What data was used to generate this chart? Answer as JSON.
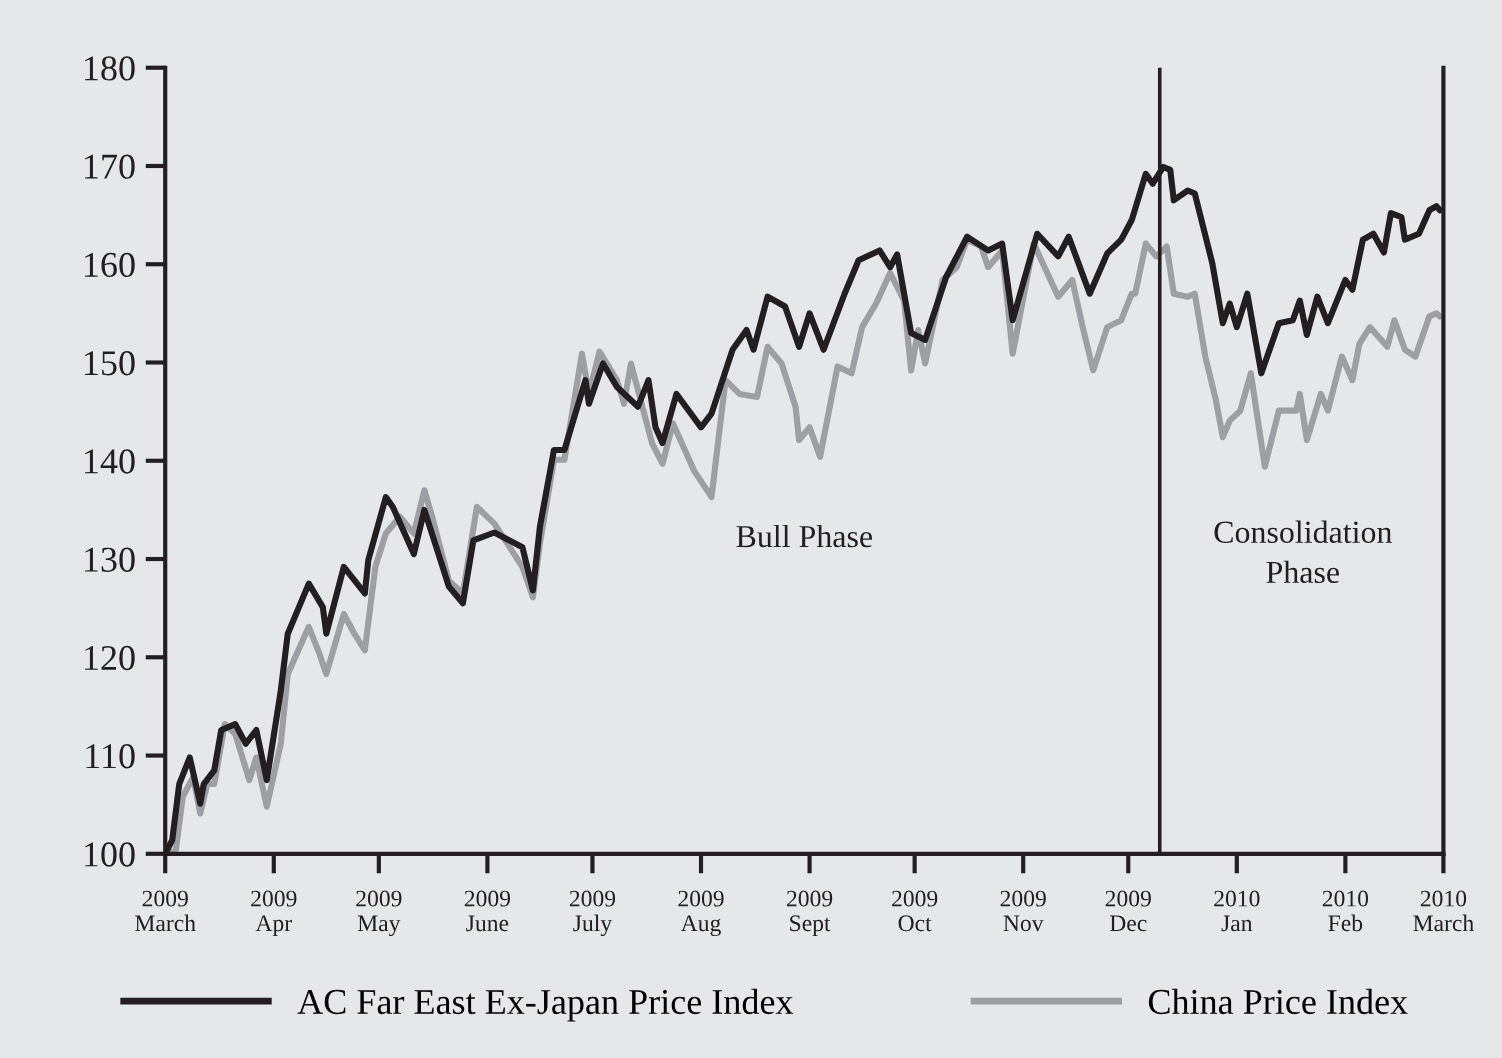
{
  "chart_data": {
    "type": "line",
    "annotations": [
      "Bull Phase",
      "Consolidation\nPhase"
    ],
    "xlim": [
      "2009-03-01",
      "2010-03-01"
    ],
    "ylim": [
      100,
      180
    ],
    "xticks": [
      {
        "value": "2009-03-01",
        "label": "2009\nMarch"
      },
      {
        "value": "2009-04-01",
        "label": "2009\nApr"
      },
      {
        "value": "2009-05-01",
        "label": "2009\nMay"
      },
      {
        "value": "2009-06-01",
        "label": "2009\nJune"
      },
      {
        "value": "2009-07-01",
        "label": "2009\nJuly"
      },
      {
        "value": "2009-08-01",
        "label": "2009\nAug"
      },
      {
        "value": "2009-09-01",
        "label": "2009\nSept"
      },
      {
        "value": "2009-10-01",
        "label": "2009\nOct"
      },
      {
        "value": "2009-11-01",
        "label": "2009\nNov"
      },
      {
        "value": "2009-12-01",
        "label": "2009\nDec"
      },
      {
        "value": "2010-01-01",
        "label": "2010\nJan"
      },
      {
        "value": "2010-02-01",
        "label": "2010\nFeb"
      },
      {
        "value": "2010-03-01",
        "label": "2010\nMarch"
      }
    ],
    "yticks": [
      100,
      110,
      120,
      130,
      140,
      150,
      160,
      170,
      180
    ],
    "ref_lines": [
      {
        "axis": "x",
        "value": "2009-12-10",
        "color": "#231f20"
      }
    ],
    "legend": "bottom",
    "series": [
      {
        "name": "AC Far East Ex-Japan Price Index",
        "color": "#231f20",
        "x": [
          "2009-03-01",
          "2009-03-03",
          "2009-03-05",
          "2009-03-08",
          "2009-03-11",
          "2009-03-12",
          "2009-03-15",
          "2009-03-17",
          "2009-03-21",
          "2009-03-24",
          "2009-03-27",
          "2009-03-30",
          "2009-04-03",
          "2009-04-05",
          "2009-04-11",
          "2009-04-15",
          "2009-04-16",
          "2009-04-21",
          "2009-04-27",
          "2009-04-28",
          "2009-05-03",
          "2009-05-05",
          "2009-05-11",
          "2009-05-14",
          "2009-05-21",
          "2009-05-25",
          "2009-05-28",
          "2009-06-03",
          "2009-06-11",
          "2009-06-14",
          "2009-06-16",
          "2009-06-20",
          "2009-06-23",
          "2009-06-29",
          "2009-06-30",
          "2009-07-04",
          "2009-07-08",
          "2009-07-14",
          "2009-07-17",
          "2009-07-19",
          "2009-07-21",
          "2009-07-25",
          "2009-08-01",
          "2009-08-04",
          "2009-08-10",
          "2009-08-14",
          "2009-08-16",
          "2009-08-20",
          "2009-08-25",
          "2009-08-29",
          "2009-09-01",
          "2009-09-05",
          "2009-09-11",
          "2009-09-15",
          "2009-09-21",
          "2009-09-24",
          "2009-09-26",
          "2009-09-30",
          "2009-10-04",
          "2009-10-10",
          "2009-10-16",
          "2009-10-22",
          "2009-10-26",
          "2009-10-29",
          "2009-11-05",
          "2009-11-11",
          "2009-11-14",
          "2009-11-20",
          "2009-11-25",
          "2009-11-29",
          "2009-12-02",
          "2009-12-06",
          "2009-12-08",
          "2009-12-11",
          "2009-12-13",
          "2009-12-14",
          "2009-12-18",
          "2009-12-20",
          "2009-12-25",
          "2009-12-28",
          "2009-12-30",
          "2010-01-01",
          "2010-01-04",
          "2010-01-08",
          "2010-01-13",
          "2010-01-17",
          "2010-01-19",
          "2010-01-21",
          "2010-01-24",
          "2010-01-27",
          "2010-02-01",
          "2010-02-03",
          "2010-02-06",
          "2010-02-09",
          "2010-02-12",
          "2010-02-14",
          "2010-02-17",
          "2010-02-18",
          "2010-02-22",
          "2010-02-25",
          "2010-02-27",
          "2010-02-28"
        ],
        "values": [
          100.0,
          101.4,
          107.1,
          109.8,
          105.1,
          107.1,
          108.5,
          112.6,
          113.2,
          111.2,
          112.6,
          107.5,
          116.6,
          122.4,
          127.5,
          125.1,
          122.4,
          129.2,
          126.5,
          129.9,
          136.3,
          135.3,
          130.5,
          135.0,
          127.2,
          125.5,
          131.9,
          132.7,
          131.2,
          126.8,
          133.3,
          141.1,
          141.1,
          148.2,
          145.8,
          149.9,
          147.5,
          145.5,
          148.2,
          143.4,
          141.8,
          146.8,
          143.4,
          144.8,
          151.3,
          153.3,
          151.3,
          156.7,
          155.7,
          151.6,
          155.0,
          151.3,
          157.0,
          160.4,
          161.4,
          159.7,
          161.0,
          153.0,
          152.3,
          158.7,
          162.8,
          161.4,
          162.1,
          154.3,
          163.1,
          160.8,
          162.8,
          157.0,
          161.1,
          162.5,
          164.5,
          169.2,
          168.2,
          169.9,
          169.6,
          166.5,
          167.5,
          167.2,
          160.1,
          154.0,
          156.0,
          153.6,
          157.0,
          148.9,
          154.0,
          154.3,
          156.3,
          152.8,
          156.7,
          154.0,
          158.4,
          157.4,
          162.5,
          163.1,
          161.2,
          165.2,
          164.8,
          162.5,
          163.1,
          165.5,
          165.9,
          165.5
        ]
      },
      {
        "name": "China Price Index",
        "color": "#9d9fa2",
        "x": [
          "2009-03-01",
          "2009-03-04",
          "2009-03-06",
          "2009-03-09",
          "2009-03-11",
          "2009-03-13",
          "2009-03-15",
          "2009-03-18",
          "2009-03-21",
          "2009-03-25",
          "2009-03-27",
          "2009-03-30",
          "2009-04-03",
          "2009-04-05",
          "2009-04-11",
          "2009-04-14",
          "2009-04-16",
          "2009-04-21",
          "2009-04-24",
          "2009-04-27",
          "2009-04-30",
          "2009-05-03",
          "2009-05-07",
          "2009-05-11",
          "2009-05-14",
          "2009-05-16",
          "2009-05-21",
          "2009-05-25",
          "2009-05-29",
          "2009-06-03",
          "2009-06-11",
          "2009-06-14",
          "2009-06-16",
          "2009-06-20",
          "2009-06-23",
          "2009-06-28",
          "2009-06-30",
          "2009-07-03",
          "2009-07-08",
          "2009-07-10",
          "2009-07-12",
          "2009-07-18",
          "2009-07-21",
          "2009-07-24",
          "2009-07-30",
          "2009-08-04",
          "2009-08-08",
          "2009-08-12",
          "2009-08-17",
          "2009-08-20",
          "2009-08-24",
          "2009-08-28",
          "2009-08-29",
          "2009-09-01",
          "2009-09-04",
          "2009-09-09",
          "2009-09-13",
          "2009-09-16",
          "2009-09-20",
          "2009-09-24",
          "2009-09-28",
          "2009-09-30",
          "2009-10-02",
          "2009-10-04",
          "2009-10-09",
          "2009-10-13",
          "2009-10-16",
          "2009-10-20",
          "2009-10-22",
          "2009-10-26",
          "2009-10-29",
          "2009-11-04",
          "2009-11-11",
          "2009-11-15",
          "2009-11-18",
          "2009-11-21",
          "2009-11-25",
          "2009-11-29",
          "2009-12-02",
          "2009-12-03",
          "2009-12-06",
          "2009-12-09",
          "2009-12-12",
          "2009-12-14",
          "2009-12-18",
          "2009-12-20",
          "2009-12-23",
          "2009-12-26",
          "2009-12-28",
          "2009-12-30",
          "2010-01-02",
          "2010-01-05",
          "2010-01-09",
          "2010-01-13",
          "2010-01-18",
          "2010-01-19",
          "2010-01-21",
          "2010-01-25",
          "2010-01-27",
          "2010-01-31",
          "2010-02-03",
          "2010-02-05",
          "2010-02-08",
          "2010-02-13",
          "2010-02-15",
          "2010-02-18",
          "2010-02-21",
          "2010-02-25",
          "2010-02-27",
          "2010-02-28"
        ],
        "values": [
          100.0,
          100.3,
          105.8,
          107.8,
          104.1,
          107.1,
          107.1,
          113.2,
          112.2,
          107.5,
          109.8,
          104.8,
          111.2,
          118.3,
          123.1,
          120.4,
          118.3,
          124.4,
          122.4,
          120.7,
          129.2,
          132.6,
          134.3,
          132.6,
          137.0,
          134.6,
          127.8,
          126.5,
          135.3,
          133.6,
          129.2,
          126.1,
          131.6,
          140.1,
          140.1,
          150.9,
          146.8,
          151.1,
          148.2,
          145.8,
          149.9,
          141.8,
          139.7,
          143.8,
          139.0,
          136.3,
          148.2,
          146.8,
          146.5,
          151.6,
          149.9,
          145.5,
          142.1,
          143.4,
          140.4,
          149.6,
          148.9,
          153.6,
          156.0,
          159.1,
          156.3,
          149.2,
          153.3,
          149.9,
          158.4,
          159.7,
          162.5,
          161.8,
          159.7,
          161.4,
          150.9,
          162.1,
          156.7,
          158.4,
          153.6,
          149.2,
          153.6,
          154.3,
          157.0,
          157.0,
          162.1,
          160.8,
          161.8,
          157.0,
          156.7,
          157.0,
          150.6,
          146.2,
          142.4,
          144.1,
          145.1,
          148.9,
          139.4,
          145.1,
          145.1,
          146.8,
          142.1,
          146.8,
          145.1,
          150.6,
          148.2,
          151.9,
          153.6,
          151.6,
          154.3,
          151.3,
          150.6,
          154.7,
          155.0,
          154.7
        ]
      }
    ]
  }
}
